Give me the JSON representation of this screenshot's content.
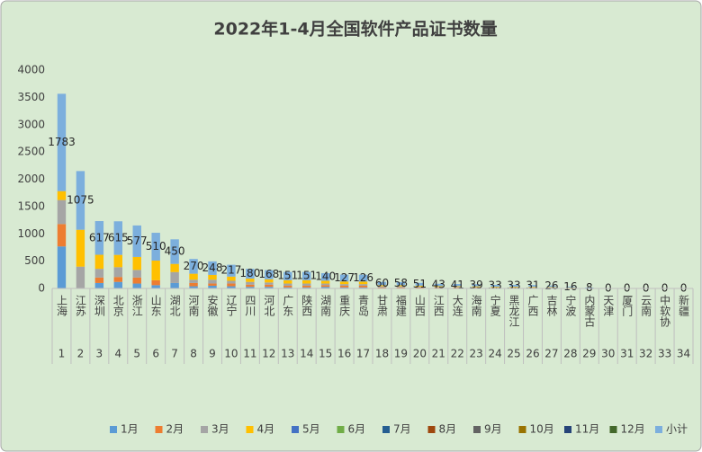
{
  "chart_data": {
    "type": "stacked_bar",
    "title": "2022年1-4月全国软件产品证书数量",
    "categories": [
      "上海",
      "江苏",
      "深圳",
      "北京",
      "浙江",
      "山东",
      "湖北",
      "河南",
      "安徽",
      "辽宁",
      "四川",
      "河北",
      "广东",
      "陕西",
      "湖南",
      "重庆",
      "青岛",
      "甘肃",
      "福建",
      "山西",
      "江西",
      "大连",
      "海南",
      "宁夏",
      "黑龙江",
      "广西",
      "吉林",
      "宁波",
      "内蒙古",
      "天津",
      "厦门",
      "云南",
      "中软协",
      "新疆"
    ],
    "category_numbers": [
      1,
      2,
      3,
      4,
      5,
      6,
      7,
      8,
      9,
      10,
      11,
      12,
      13,
      14,
      15,
      16,
      17,
      18,
      19,
      20,
      21,
      22,
      23,
      24,
      25,
      26,
      27,
      28,
      29,
      30,
      31,
      32,
      33,
      34
    ],
    "ylim": [
      0,
      4000
    ],
    "yticks": [
      0,
      500,
      1000,
      1500,
      2000,
      2500,
      3000,
      3500,
      4000
    ],
    "grid": false,
    "legend": "bottom",
    "series": [
      {
        "name": "1月",
        "color": "#5b9bd5",
        "values": [
          770,
          0,
          100,
          120,
          90,
          60,
          100,
          40,
          50,
          40,
          30,
          30,
          20,
          20,
          30,
          20,
          20,
          10,
          10,
          10,
          10,
          10,
          10,
          5,
          5,
          5,
          5,
          3,
          2,
          0,
          0,
          0,
          0,
          0
        ]
      },
      {
        "name": "2月",
        "color": "#ed7d31",
        "values": [
          410,
          0,
          100,
          90,
          110,
          90,
          0,
          60,
          40,
          50,
          40,
          40,
          30,
          30,
          30,
          30,
          30,
          10,
          10,
          10,
          10,
          10,
          5,
          8,
          8,
          8,
          6,
          3,
          2,
          0,
          0,
          0,
          0,
          0
        ]
      },
      {
        "name": "3月",
        "color": "#a5a5a5",
        "values": [
          440,
          400,
          160,
          180,
          140,
          0,
          200,
          60,
          70,
          50,
          50,
          40,
          40,
          40,
          30,
          30,
          30,
          20,
          18,
          15,
          10,
          10,
          10,
          10,
          10,
          8,
          7,
          5,
          2,
          0,
          0,
          0,
          0,
          0
        ]
      },
      {
        "name": "4月",
        "color": "#ffc000",
        "values": [
          163,
          675,
          257,
          225,
          237,
          360,
          150,
          110,
          88,
          77,
          60,
          58,
          61,
          61,
          50,
          47,
          46,
          20,
          20,
          16,
          13,
          11,
          14,
          10,
          10,
          10,
          8,
          5,
          2,
          0,
          0,
          0,
          0,
          0
        ]
      },
      {
        "name": "5月",
        "color": "#4472c4",
        "values": [
          0,
          0,
          0,
          0,
          0,
          0,
          0,
          0,
          0,
          0,
          0,
          0,
          0,
          0,
          0,
          0,
          0,
          0,
          0,
          0,
          0,
          0,
          0,
          0,
          0,
          0,
          0,
          0,
          0,
          0,
          0,
          0,
          0,
          0
        ]
      },
      {
        "name": "6月",
        "color": "#70ad47",
        "values": [
          0,
          0,
          0,
          0,
          0,
          0,
          0,
          0,
          0,
          0,
          0,
          0,
          0,
          0,
          0,
          0,
          0,
          0,
          0,
          0,
          0,
          0,
          0,
          0,
          0,
          0,
          0,
          0,
          0,
          0,
          0,
          0,
          0,
          0
        ]
      },
      {
        "name": "7月",
        "color": "#255e91",
        "values": [
          0,
          0,
          0,
          0,
          0,
          0,
          0,
          0,
          0,
          0,
          0,
          0,
          0,
          0,
          0,
          0,
          0,
          0,
          0,
          0,
          0,
          0,
          0,
          0,
          0,
          0,
          0,
          0,
          0,
          0,
          0,
          0,
          0,
          0
        ]
      },
      {
        "name": "8月",
        "color": "#9e480e",
        "values": [
          0,
          0,
          0,
          0,
          0,
          0,
          0,
          0,
          0,
          0,
          0,
          0,
          0,
          0,
          0,
          0,
          0,
          0,
          0,
          0,
          0,
          0,
          0,
          0,
          0,
          0,
          0,
          0,
          0,
          0,
          0,
          0,
          0,
          0
        ]
      },
      {
        "name": "9月",
        "color": "#636363",
        "values": [
          0,
          0,
          0,
          0,
          0,
          0,
          0,
          0,
          0,
          0,
          0,
          0,
          0,
          0,
          0,
          0,
          0,
          0,
          0,
          0,
          0,
          0,
          0,
          0,
          0,
          0,
          0,
          0,
          0,
          0,
          0,
          0,
          0,
          0
        ]
      },
      {
        "name": "10月",
        "color": "#997300",
        "values": [
          0,
          0,
          0,
          0,
          0,
          0,
          0,
          0,
          0,
          0,
          0,
          0,
          0,
          0,
          0,
          0,
          0,
          0,
          0,
          0,
          0,
          0,
          0,
          0,
          0,
          0,
          0,
          0,
          0,
          0,
          0,
          0,
          0,
          0
        ]
      },
      {
        "name": "11月",
        "color": "#264478",
        "values": [
          0,
          0,
          0,
          0,
          0,
          0,
          0,
          0,
          0,
          0,
          0,
          0,
          0,
          0,
          0,
          0,
          0,
          0,
          0,
          0,
          0,
          0,
          0,
          0,
          0,
          0,
          0,
          0,
          0,
          0,
          0,
          0,
          0,
          0
        ]
      },
      {
        "name": "12月",
        "color": "#43682b",
        "values": [
          0,
          0,
          0,
          0,
          0,
          0,
          0,
          0,
          0,
          0,
          0,
          0,
          0,
          0,
          0,
          0,
          0,
          0,
          0,
          0,
          0,
          0,
          0,
          0,
          0,
          0,
          0,
          0,
          0,
          0,
          0,
          0,
          0,
          0
        ]
      },
      {
        "name": "小计",
        "color": "#7cafdd",
        "show_labels": true,
        "values": [
          1783,
          1075,
          617,
          615,
          577,
          510,
          450,
          270,
          248,
          217,
          180,
          168,
          151,
          151,
          140,
          127,
          126,
          60,
          58,
          51,
          43,
          41,
          39,
          33,
          33,
          31,
          26,
          16,
          8,
          0,
          0,
          0,
          0,
          0
        ]
      }
    ]
  }
}
